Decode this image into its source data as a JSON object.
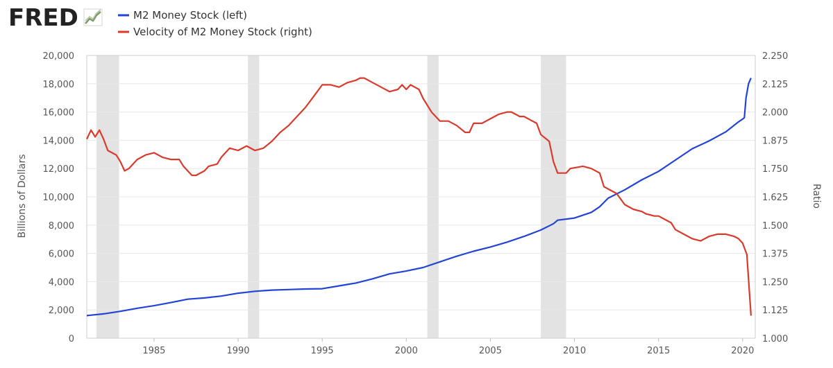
{
  "brand": {
    "logo_text": "FRED"
  },
  "colors": {
    "left_series": "#2143d6",
    "right_series": "#d93a2b",
    "recession": "#e3e3e3",
    "grid": "#e8e8e8",
    "plot_border": "#cfcfcf"
  },
  "chart_data": {
    "type": "line",
    "title": "",
    "legend_position": "top-left",
    "grid": true,
    "x_range": [
      1981.0,
      2020.75
    ],
    "x_ticks": [
      1985,
      1990,
      1995,
      2000,
      2005,
      2010,
      2015,
      2020
    ],
    "x_tick_labels": [
      "1985",
      "1990",
      "1995",
      "2000",
      "2005",
      "2010",
      "2015",
      "2020"
    ],
    "y_left": {
      "label": "Billions of Dollars",
      "range": [
        0,
        20000
      ],
      "ticks": [
        0,
        2000,
        4000,
        6000,
        8000,
        10000,
        12000,
        14000,
        16000,
        18000,
        20000
      ],
      "tick_labels": [
        "0",
        "2,000",
        "4,000",
        "6,000",
        "8,000",
        "10,000",
        "12,000",
        "14,000",
        "16,000",
        "18,000",
        "20,000"
      ]
    },
    "y_right": {
      "label": "Ratio",
      "range": [
        1.0,
        2.25
      ],
      "ticks": [
        1.0,
        1.125,
        1.25,
        1.375,
        1.5,
        1.625,
        1.75,
        1.875,
        2.0,
        2.125,
        2.25
      ],
      "tick_labels": [
        "1.000",
        "1.125",
        "1.250",
        "1.375",
        "1.500",
        "1.625",
        "1.750",
        "1.875",
        "2.000",
        "2.125",
        "2.250"
      ]
    },
    "recessions": [
      [
        1981.58,
        1982.92
      ],
      [
        1990.58,
        1991.25
      ],
      [
        2001.25,
        2001.92
      ],
      [
        2008.0,
        2009.5
      ]
    ],
    "series": [
      {
        "name": "M2 Money Stock (left)",
        "axis": "left",
        "color": "#2143d6",
        "points": [
          [
            1981.0,
            1600
          ],
          [
            1982.0,
            1720
          ],
          [
            1983.0,
            1900
          ],
          [
            1984.0,
            2120
          ],
          [
            1985.0,
            2300
          ],
          [
            1986.0,
            2520
          ],
          [
            1987.0,
            2760
          ],
          [
            1988.0,
            2850
          ],
          [
            1989.0,
            2980
          ],
          [
            1990.0,
            3180
          ],
          [
            1991.0,
            3320
          ],
          [
            1992.0,
            3400
          ],
          [
            1993.0,
            3440
          ],
          [
            1994.0,
            3480
          ],
          [
            1995.0,
            3500
          ],
          [
            1996.0,
            3700
          ],
          [
            1997.0,
            3900
          ],
          [
            1998.0,
            4200
          ],
          [
            1999.0,
            4550
          ],
          [
            2000.0,
            4750
          ],
          [
            2001.0,
            5000
          ],
          [
            2002.0,
            5400
          ],
          [
            2003.0,
            5800
          ],
          [
            2004.0,
            6150
          ],
          [
            2005.0,
            6450
          ],
          [
            2006.0,
            6800
          ],
          [
            2007.0,
            7200
          ],
          [
            2008.0,
            7650
          ],
          [
            2008.75,
            8100
          ],
          [
            2009.0,
            8350
          ],
          [
            2010.0,
            8500
          ],
          [
            2011.0,
            8900
          ],
          [
            2011.5,
            9300
          ],
          [
            2012.0,
            9900
          ],
          [
            2013.0,
            10500
          ],
          [
            2014.0,
            11200
          ],
          [
            2015.0,
            11800
          ],
          [
            2016.0,
            12600
          ],
          [
            2017.0,
            13400
          ],
          [
            2018.0,
            13950
          ],
          [
            2019.0,
            14600
          ],
          [
            2019.75,
            15300
          ],
          [
            2020.0,
            15500
          ],
          [
            2020.1,
            15600
          ],
          [
            2020.2,
            17000
          ],
          [
            2020.35,
            18000
          ],
          [
            2020.5,
            18400
          ]
        ]
      },
      {
        "name": "Velocity of M2 Money Stock (right)",
        "axis": "right",
        "color": "#d93a2b",
        "points": [
          [
            1981.0,
            1.88
          ],
          [
            1981.25,
            1.92
          ],
          [
            1981.5,
            1.89
          ],
          [
            1981.75,
            1.92
          ],
          [
            1982.0,
            1.88
          ],
          [
            1982.25,
            1.83
          ],
          [
            1982.75,
            1.81
          ],
          [
            1983.0,
            1.78
          ],
          [
            1983.25,
            1.74
          ],
          [
            1983.5,
            1.75
          ],
          [
            1984.0,
            1.79
          ],
          [
            1984.5,
            1.81
          ],
          [
            1985.0,
            1.82
          ],
          [
            1985.5,
            1.8
          ],
          [
            1986.0,
            1.79
          ],
          [
            1986.5,
            1.79
          ],
          [
            1986.75,
            1.76
          ],
          [
            1987.0,
            1.74
          ],
          [
            1987.25,
            1.72
          ],
          [
            1987.5,
            1.72
          ],
          [
            1988.0,
            1.74
          ],
          [
            1988.25,
            1.76
          ],
          [
            1988.75,
            1.77
          ],
          [
            1989.0,
            1.8
          ],
          [
            1989.5,
            1.84
          ],
          [
            1990.0,
            1.83
          ],
          [
            1990.5,
            1.85
          ],
          [
            1991.0,
            1.83
          ],
          [
            1991.5,
            1.84
          ],
          [
            1992.0,
            1.87
          ],
          [
            1992.5,
            1.91
          ],
          [
            1993.0,
            1.94
          ],
          [
            1993.5,
            1.98
          ],
          [
            1994.0,
            2.02
          ],
          [
            1994.5,
            2.07
          ],
          [
            1995.0,
            2.12
          ],
          [
            1995.5,
            2.12
          ],
          [
            1996.0,
            2.11
          ],
          [
            1996.5,
            2.13
          ],
          [
            1997.0,
            2.14
          ],
          [
            1997.25,
            2.15
          ],
          [
            1997.5,
            2.15
          ],
          [
            1998.0,
            2.13
          ],
          [
            1998.5,
            2.11
          ],
          [
            1999.0,
            2.09
          ],
          [
            1999.5,
            2.1
          ],
          [
            1999.75,
            2.12
          ],
          [
            2000.0,
            2.1
          ],
          [
            2000.25,
            2.12
          ],
          [
            2000.75,
            2.1
          ],
          [
            2001.0,
            2.06
          ],
          [
            2001.5,
            2.0
          ],
          [
            2001.75,
            1.98
          ],
          [
            2002.0,
            1.96
          ],
          [
            2002.5,
            1.96
          ],
          [
            2003.0,
            1.94
          ],
          [
            2003.5,
            1.91
          ],
          [
            2003.75,
            1.91
          ],
          [
            2004.0,
            1.95
          ],
          [
            2004.5,
            1.95
          ],
          [
            2005.0,
            1.97
          ],
          [
            2005.5,
            1.99
          ],
          [
            2006.0,
            2.0
          ],
          [
            2006.25,
            2.0
          ],
          [
            2006.75,
            1.98
          ],
          [
            2007.0,
            1.98
          ],
          [
            2007.5,
            1.96
          ],
          [
            2007.75,
            1.95
          ],
          [
            2008.0,
            1.9
          ],
          [
            2008.5,
            1.87
          ],
          [
            2008.75,
            1.78
          ],
          [
            2009.0,
            1.73
          ],
          [
            2009.5,
            1.73
          ],
          [
            2009.75,
            1.75
          ],
          [
            2010.5,
            1.76
          ],
          [
            2011.0,
            1.75
          ],
          [
            2011.5,
            1.73
          ],
          [
            2011.75,
            1.67
          ],
          [
            2012.0,
            1.66
          ],
          [
            2012.5,
            1.64
          ],
          [
            2013.0,
            1.59
          ],
          [
            2013.5,
            1.57
          ],
          [
            2014.0,
            1.56
          ],
          [
            2014.25,
            1.55
          ],
          [
            2014.75,
            1.54
          ],
          [
            2015.0,
            1.54
          ],
          [
            2015.25,
            1.53
          ],
          [
            2015.75,
            1.51
          ],
          [
            2016.0,
            1.48
          ],
          [
            2016.5,
            1.46
          ],
          [
            2017.0,
            1.44
          ],
          [
            2017.5,
            1.43
          ],
          [
            2018.0,
            1.45
          ],
          [
            2018.5,
            1.46
          ],
          [
            2019.0,
            1.46
          ],
          [
            2019.5,
            1.45
          ],
          [
            2019.75,
            1.44
          ],
          [
            2020.0,
            1.42
          ],
          [
            2020.25,
            1.37
          ],
          [
            2020.5,
            1.1
          ]
        ]
      }
    ]
  }
}
